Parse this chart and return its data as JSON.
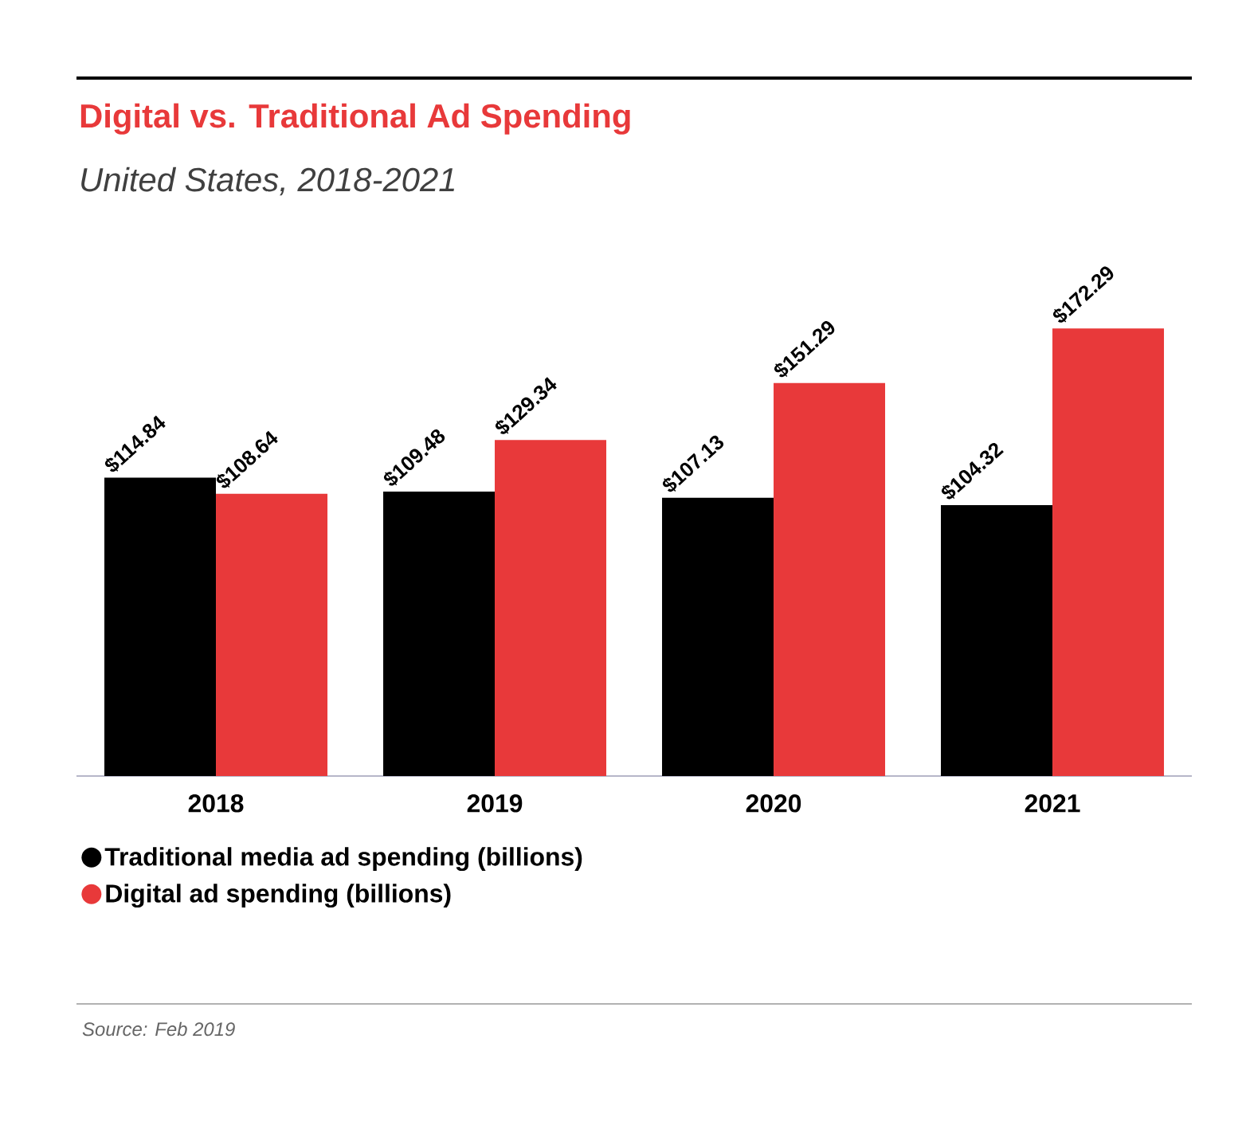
{
  "chart_data": {
    "type": "bar",
    "title": "Digital vs. Traditional Ad Spending",
    "subtitle": "United States, 2018-2021",
    "categories": [
      "2018",
      "2019",
      "2020",
      "2021"
    ],
    "series": [
      {
        "name": "Traditional media ad spending (billions)",
        "color": "#000000",
        "values": [
          114.84,
          109.48,
          107.13,
          104.32
        ],
        "value_labels": [
          "$114.84",
          "$109.48",
          "$107.13",
          "$104.32"
        ]
      },
      {
        "name": "Digital ad spending (billions)",
        "color": "#e8393a",
        "values": [
          108.64,
          129.34,
          151.29,
          172.29
        ],
        "value_labels": [
          "$108.64",
          "$129.34",
          "$151.29",
          "$172.29"
        ]
      }
    ],
    "legend": "bottom",
    "annotations": [
      "Source: Feb 2019"
    ]
  }
}
